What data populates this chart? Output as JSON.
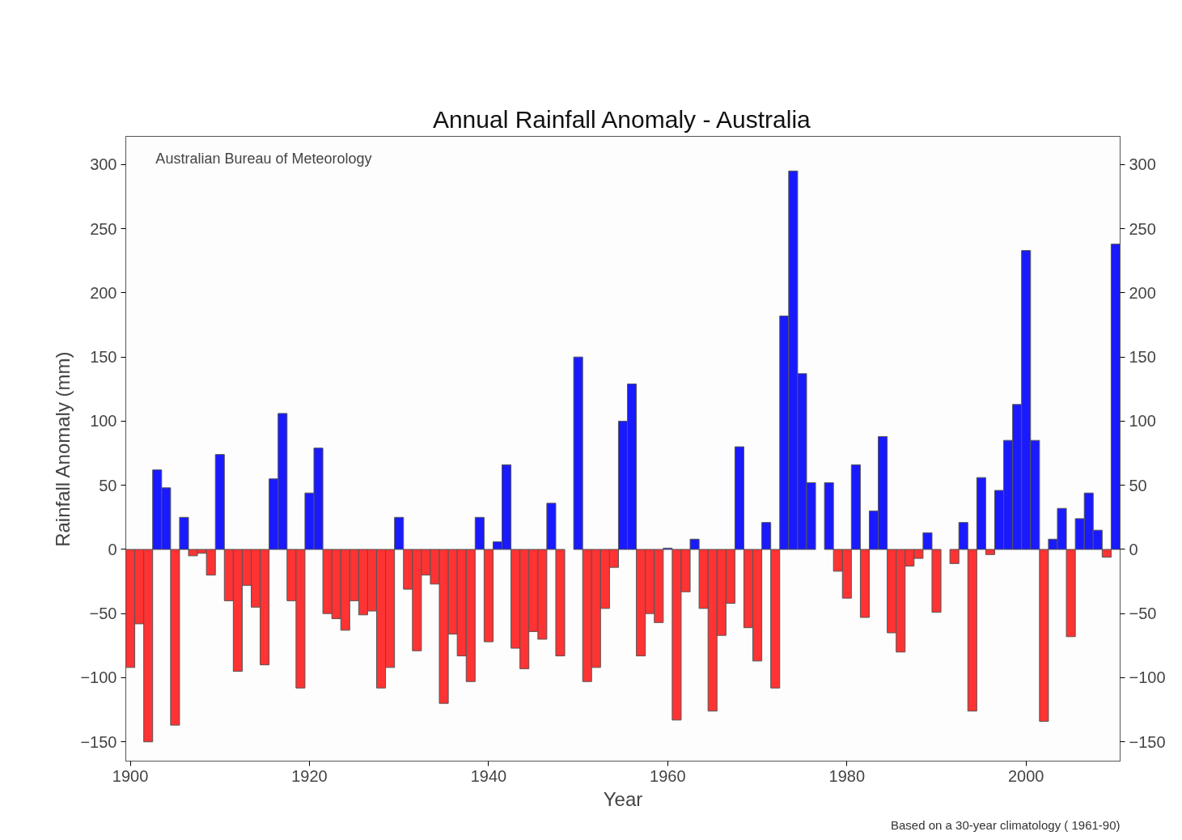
{
  "chart_data": {
    "type": "bar",
    "title": "Annual Rainfall Anomaly - Australia",
    "xlabel": "Year",
    "ylabel": "Rainfall Anomaly (mm)",
    "annotations": [
      "Australian Bureau of Meteorology",
      "Based on a 30-year climatology ( 1961-90)"
    ],
    "x": [
      1900,
      1901,
      1902,
      1903,
      1904,
      1905,
      1906,
      1907,
      1908,
      1909,
      1910,
      1911,
      1912,
      1913,
      1914,
      1915,
      1916,
      1917,
      1918,
      1919,
      1920,
      1921,
      1922,
      1923,
      1924,
      1925,
      1926,
      1927,
      1928,
      1929,
      1930,
      1931,
      1932,
      1933,
      1934,
      1935,
      1936,
      1937,
      1938,
      1939,
      1940,
      1941,
      1942,
      1943,
      1944,
      1945,
      1946,
      1947,
      1948,
      1949,
      1950,
      1951,
      1952,
      1953,
      1954,
      1955,
      1956,
      1957,
      1958,
      1959,
      1960,
      1961,
      1962,
      1963,
      1964,
      1965,
      1966,
      1967,
      1968,
      1969,
      1970,
      1971,
      1972,
      1973,
      1974,
      1975,
      1976,
      1977,
      1978,
      1979,
      1980,
      1981,
      1982,
      1983,
      1984,
      1985,
      1986,
      1987,
      1988,
      1989,
      1990,
      1991,
      1992,
      1993,
      1994,
      1995,
      1996,
      1997,
      1998,
      1999,
      2000,
      2001,
      2002,
      2003,
      2004,
      2005,
      2006,
      2007,
      2008,
      2009,
      2010
    ],
    "values": [
      -92,
      -58,
      -150,
      62,
      48,
      -137,
      25,
      -5,
      -3,
      -20,
      74,
      -40,
      -95,
      -28,
      -45,
      -90,
      55,
      106,
      -40,
      -108,
      44,
      79,
      -50,
      -54,
      -63,
      -40,
      -51,
      -48,
      -108,
      -92,
      25,
      -31,
      -79,
      -20,
      -27,
      -120,
      -66,
      -83,
      -103,
      25,
      -72,
      6,
      66,
      -77,
      -93,
      -64,
      -70,
      36,
      -83,
      null,
      150,
      -103,
      -92,
      -46,
      -14,
      100,
      129,
      -83,
      -50,
      -57,
      1,
      -133,
      -33,
      8,
      -46,
      -126,
      -67,
      -42,
      80,
      -61,
      -87,
      21,
      -108,
      182,
      295,
      137,
      52,
      null,
      52,
      -17,
      -38,
      66,
      -53,
      30,
      88,
      -65,
      -80,
      -13,
      -7,
      13,
      -49,
      null,
      -11,
      21,
      -126,
      56,
      -4,
      46,
      85,
      113,
      233,
      85,
      -134,
      8,
      32,
      -68,
      24,
      44,
      15,
      -6,
      238
    ],
    "colors": [
      "#ff3333",
      "#ff3333",
      "#ff3333",
      "#1a1aff",
      "#1a1aff",
      "#ff3333",
      "#1a1aff",
      "#ff3333",
      "#ff3333",
      "#ff3333",
      "#1a1aff",
      "#ff3333",
      "#ff3333",
      "#ff3333",
      "#ff3333",
      "#ff3333",
      "#1a1aff",
      "#1a1aff",
      "#ff3333",
      "#ff3333",
      "#1a1aff",
      "#1a1aff",
      "#ff3333",
      "#ff3333",
      "#ff3333",
      "#ff3333",
      "#ff3333",
      "#ff3333",
      "#ff3333",
      "#ff3333",
      "#1a1aff",
      "#ff3333",
      "#ff3333",
      "#ff3333",
      "#ff3333",
      "#ff3333",
      "#ff3333",
      "#ff3333",
      "#ff3333",
      "#1a1aff",
      "#ff3333",
      "#1a1aff",
      "#1a1aff",
      "#ff3333",
      "#ff3333",
      "#ff3333",
      "#ff3333",
      "#1a1aff",
      "#ff3333",
      "#1a1aff",
      "#1a1aff",
      "#ff3333",
      "#ff3333",
      "#ff3333",
      "#ff3333",
      "#1a1aff",
      "#1a1aff",
      "#ff3333",
      "#ff3333",
      "#ff3333",
      "#1a1aff",
      "#ff3333",
      "#ff3333",
      "#1a1aff",
      "#ff3333",
      "#ff3333",
      "#ff3333",
      "#ff3333",
      "#1a1aff",
      "#ff3333",
      "#ff3333",
      "#1a1aff",
      "#ff3333",
      "#1a1aff",
      "#1a1aff",
      "#1a1aff",
      "#1a1aff",
      "#1a1aff",
      "#1a1aff",
      "#ff3333",
      "#ff3333",
      "#1a1aff",
      "#ff3333",
      "#1a1aff",
      "#1a1aff",
      "#ff3333",
      "#ff3333",
      "#ff3333",
      "#ff3333",
      "#1a1aff",
      "#ff3333",
      "#1a1aff",
      "#ff3333",
      "#1a1aff",
      "#ff3333",
      "#1a1aff",
      "#ff3333",
      "#1a1aff",
      "#1a1aff",
      "#1a1aff",
      "#1a1aff",
      "#1a1aff",
      "#ff3333",
      "#1a1aff",
      "#1a1aff",
      "#ff3333",
      "#1a1aff",
      "#1a1aff",
      "#1a1aff",
      "#ff3333",
      "#1a1aff"
    ],
    "xlim": [
      1899.5,
      2010.5
    ],
    "xticks": [
      1900,
      1920,
      1940,
      1960,
      1980,
      2000
    ],
    "ylim": [
      -165,
      322
    ],
    "yticks": [
      -150,
      -100,
      -50,
      0,
      50,
      100,
      150,
      200,
      250,
      300
    ],
    "y2lim": [
      -165,
      322
    ],
    "y2ticks": [
      -150,
      -100,
      -50,
      0,
      50,
      100,
      150,
      200,
      250,
      300
    ],
    "grid": false
  }
}
